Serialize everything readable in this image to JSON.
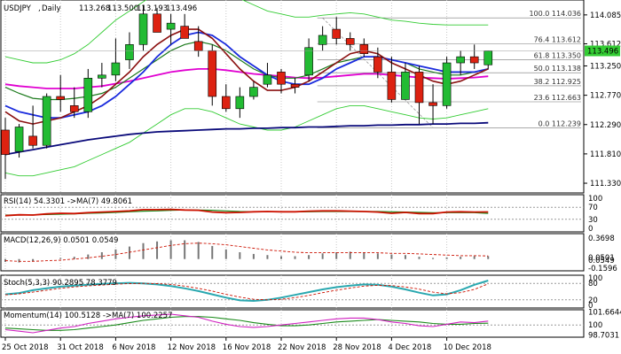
{
  "chart_data": {
    "type": "candlestick",
    "symbol": "USDJPY",
    "timeframe": "Daily",
    "ohlc_header": [
      "113.268",
      "113.500",
      "113.193",
      "113.496"
    ],
    "last_price_label": "113.496",
    "colors": {
      "bull": "#22bb33",
      "bear": "#dd2211",
      "ma_fast": "#8b1010",
      "ma_mid": "#1a2bdd",
      "ma_green": "#1c7a1c",
      "ma_magenta": "#e000d0",
      "ma_long": "#0a0a7a",
      "bollinger": "#33cc33",
      "grid": "#c8c8c8",
      "last_price_bg": "#33cc33"
    },
    "ylim": [
      111.2,
      114.3
    ],
    "price_ticks": [
      "114.085",
      "113.612",
      "113.250",
      "112.770",
      "112.290",
      "111.810",
      "111.330"
    ],
    "x_ticks": [
      {
        "i": 0,
        "label": "25 Oct 2018"
      },
      {
        "i": 4,
        "label": "31 Oct 2018"
      },
      {
        "i": 8,
        "label": "6 Nov 2018"
      },
      {
        "i": 12,
        "label": "12 Nov 2018"
      },
      {
        "i": 16,
        "label": "16 Nov 2018"
      },
      {
        "i": 20,
        "label": "22 Nov 2018"
      },
      {
        "i": 24,
        "label": "28 Nov 2018"
      },
      {
        "i": 28,
        "label": "4 Dec 2018"
      },
      {
        "i": 32,
        "label": "10 Dec 2018"
      }
    ],
    "candles": [
      [
        112.2,
        112.4,
        111.4,
        111.8
      ],
      [
        111.85,
        112.3,
        111.75,
        112.25
      ],
      [
        112.1,
        112.6,
        111.9,
        111.95
      ],
      [
        111.95,
        112.8,
        111.9,
        112.75
      ],
      [
        112.75,
        113.1,
        112.5,
        112.7
      ],
      [
        112.6,
        112.9,
        112.4,
        112.5
      ],
      [
        112.5,
        113.2,
        112.4,
        113.05
      ],
      [
        113.05,
        113.3,
        112.9,
        113.1
      ],
      [
        113.1,
        113.7,
        113.0,
        113.3
      ],
      [
        113.35,
        113.8,
        113.2,
        113.6
      ],
      [
        113.6,
        114.25,
        113.5,
        114.1
      ],
      [
        114.1,
        114.2,
        113.8,
        113.8
      ],
      [
        113.85,
        114.1,
        113.6,
        113.95
      ],
      [
        113.9,
        114.1,
        113.7,
        113.7
      ],
      [
        113.65,
        113.9,
        113.4,
        113.5
      ],
      [
        113.5,
        113.6,
        112.6,
        112.75
      ],
      [
        112.75,
        112.95,
        112.5,
        112.55
      ],
      [
        112.55,
        112.9,
        112.4,
        112.75
      ],
      [
        112.75,
        113.0,
        112.7,
        112.9
      ],
      [
        112.95,
        113.3,
        112.9,
        113.1
      ],
      [
        113.15,
        113.2,
        112.8,
        112.95
      ],
      [
        112.95,
        113.05,
        112.8,
        112.9
      ],
      [
        113.1,
        113.7,
        113.0,
        113.55
      ],
      [
        113.6,
        113.9,
        113.5,
        113.75
      ],
      [
        113.85,
        114.05,
        113.6,
        113.7
      ],
      [
        113.7,
        113.8,
        113.5,
        113.6
      ],
      [
        113.6,
        113.7,
        113.4,
        113.45
      ],
      [
        113.4,
        113.55,
        113.05,
        113.15
      ],
      [
        113.15,
        113.4,
        112.65,
        112.7
      ],
      [
        112.7,
        113.3,
        112.7,
        113.15
      ],
      [
        113.15,
        113.25,
        112.3,
        112.65
      ],
      [
        112.65,
        112.95,
        112.3,
        112.6
      ],
      [
        112.6,
        113.4,
        112.55,
        113.3
      ],
      [
        113.3,
        113.5,
        113.1,
        113.4
      ],
      [
        113.4,
        113.6,
        113.2,
        113.3
      ],
      [
        113.268,
        113.5,
        113.193,
        113.496
      ]
    ],
    "ma_fast": [
      112.5,
      112.35,
      112.3,
      112.35,
      112.4,
      112.5,
      112.6,
      112.75,
      112.95,
      113.15,
      113.4,
      113.6,
      113.75,
      113.85,
      113.85,
      113.7,
      113.45,
      113.2,
      113.0,
      112.85,
      112.85,
      112.9,
      113.0,
      113.15,
      113.3,
      113.45,
      113.5,
      113.45,
      113.3,
      113.2,
      113.1,
      113.0,
      112.95,
      113.0,
      113.1,
      113.2
    ],
    "ma_mid": [
      112.6,
      112.5,
      112.45,
      112.4,
      112.4,
      112.45,
      112.5,
      112.6,
      112.75,
      112.95,
      113.15,
      113.4,
      113.6,
      113.75,
      113.8,
      113.75,
      113.6,
      113.4,
      113.25,
      113.1,
      113.0,
      112.95,
      112.95,
      113.05,
      113.2,
      113.3,
      113.4,
      113.4,
      113.35,
      113.3,
      113.25,
      113.2,
      113.15,
      113.15,
      113.15,
      113.2
    ],
    "ma_green": [
      112.9,
      112.8,
      112.72,
      112.7,
      112.7,
      112.72,
      112.75,
      112.8,
      112.9,
      113.05,
      113.2,
      113.35,
      113.5,
      113.6,
      113.65,
      113.6,
      113.5,
      113.35,
      113.2,
      113.1,
      113.05,
      113.05,
      113.1,
      113.2,
      113.3,
      113.35,
      113.4,
      113.4,
      113.35,
      113.3,
      113.2,
      113.15,
      113.1,
      113.1,
      113.15,
      113.2
    ],
    "ma_magenta": [
      112.95,
      112.92,
      112.9,
      112.88,
      112.88,
      112.88,
      112.9,
      112.92,
      112.96,
      113.0,
      113.05,
      113.1,
      113.15,
      113.18,
      113.2,
      113.2,
      113.18,
      113.15,
      113.12,
      113.1,
      113.08,
      113.06,
      113.05,
      113.06,
      113.08,
      113.1,
      113.12,
      113.12,
      113.1,
      113.08,
      113.06,
      113.05,
      113.04,
      113.05,
      113.06,
      113.08
    ],
    "ma_long": [
      111.8,
      111.84,
      111.88,
      111.92,
      111.96,
      112.0,
      112.04,
      112.07,
      112.1,
      112.13,
      112.15,
      112.17,
      112.18,
      112.19,
      112.2,
      112.21,
      112.22,
      112.22,
      112.23,
      112.23,
      112.24,
      112.24,
      112.25,
      112.25,
      112.26,
      112.27,
      112.27,
      112.28,
      112.28,
      112.29,
      112.29,
      112.3,
      112.3,
      112.31,
      112.31,
      112.32
    ],
    "bb_upper": [
      113.4,
      113.35,
      113.3,
      113.3,
      113.35,
      113.45,
      113.6,
      113.8,
      114.0,
      114.15,
      114.3,
      114.45,
      114.55,
      114.6,
      114.6,
      114.55,
      114.45,
      114.35,
      114.25,
      114.15,
      114.1,
      114.05,
      114.05,
      114.08,
      114.1,
      114.12,
      114.1,
      114.05,
      114.0,
      113.98,
      113.95,
      113.93,
      113.92,
      113.92,
      113.92,
      113.92
    ],
    "bb_lower": [
      111.5,
      111.45,
      111.45,
      111.5,
      111.55,
      111.6,
      111.7,
      111.8,
      111.9,
      112.0,
      112.15,
      112.3,
      112.45,
      112.55,
      112.55,
      112.5,
      112.4,
      112.3,
      112.25,
      112.2,
      112.2,
      112.25,
      112.35,
      112.45,
      112.55,
      112.6,
      112.6,
      112.55,
      112.5,
      112.45,
      112.4,
      112.38,
      112.4,
      112.45,
      112.5,
      112.55
    ],
    "fib_levels": [
      {
        "label": "100.0 114.036",
        "value": 114.036
      },
      {
        "label": "76.4 113.612",
        "value": 113.612
      },
      {
        "label": "61.8 113.350",
        "value": 113.35
      },
      {
        "label": "50.0 113.138",
        "value": 113.138
      },
      {
        "label": "38.2 112.925",
        "value": 112.925
      },
      {
        "label": "23.6 112.663",
        "value": 112.663
      },
      {
        "label": "0.0 112.239",
        "value": 112.239
      }
    ],
    "rsi": {
      "title": "RSI(14) 54.3301 ->MA(7) 49.8061",
      "ticks": [
        "100",
        "70",
        "30",
        "0"
      ],
      "levels": [
        70,
        30
      ],
      "values": [
        42,
        45,
        44,
        48,
        50,
        49,
        52,
        54,
        56,
        58,
        62,
        62,
        63,
        61,
        60,
        54,
        52,
        53,
        55,
        56,
        55,
        55,
        57,
        58,
        58,
        57,
        56,
        54,
        50,
        53,
        49,
        49,
        54,
        55,
        54,
        54.33
      ],
      "ma": [
        44,
        44,
        45,
        46,
        47,
        48,
        50,
        51,
        53,
        55,
        57,
        58,
        60,
        61,
        61,
        60,
        58,
        56,
        55,
        55,
        55,
        55,
        55,
        56,
        56,
        56,
        56,
        56,
        55,
        54,
        53,
        52,
        52,
        52,
        52,
        49.81
      ]
    },
    "macd": {
      "title": "MACD(12,26,9) 0.0501 0.0549",
      "ticks": [
        "0.3698",
        "0.0501",
        "0.0549",
        "-0.1596"
      ],
      "ylim": [
        -0.16,
        0.4
      ],
      "values": [
        -0.05,
        -0.06,
        -0.04,
        0.0,
        0.02,
        0.04,
        0.08,
        0.12,
        0.17,
        0.22,
        0.28,
        0.31,
        0.33,
        0.33,
        0.3,
        0.23,
        0.17,
        0.12,
        0.09,
        0.07,
        0.05,
        0.05,
        0.07,
        0.1,
        0.12,
        0.13,
        0.12,
        0.1,
        0.08,
        0.07,
        0.04,
        0.02,
        0.03,
        0.04,
        0.05,
        0.0501
      ],
      "signal": [
        -0.03,
        -0.04,
        -0.04,
        -0.03,
        -0.02,
        0.0,
        0.02,
        0.05,
        0.08,
        0.12,
        0.16,
        0.2,
        0.24,
        0.27,
        0.28,
        0.27,
        0.25,
        0.22,
        0.19,
        0.16,
        0.14,
        0.12,
        0.11,
        0.11,
        0.11,
        0.11,
        0.11,
        0.11,
        0.1,
        0.1,
        0.09,
        0.08,
        0.07,
        0.06,
        0.06,
        0.0549
      ]
    },
    "stoch": {
      "title": "Stoch(5,3,3) 90.2895 78.3779",
      "ticks": [
        "100",
        "80",
        "20",
        "0"
      ],
      "levels": [
        80,
        20
      ],
      "k": [
        40,
        45,
        55,
        62,
        68,
        72,
        75,
        78,
        80,
        82,
        80,
        76,
        70,
        62,
        52,
        40,
        28,
        18,
        16,
        20,
        28,
        38,
        48,
        58,
        66,
        72,
        76,
        75,
        68,
        58,
        46,
        36,
        40,
        55,
        75,
        90.29
      ],
      "d": [
        38,
        42,
        48,
        55,
        62,
        67,
        71,
        74,
        77,
        79,
        80,
        79,
        76,
        70,
        62,
        52,
        40,
        30,
        22,
        20,
        22,
        28,
        36,
        46,
        55,
        63,
        70,
        73,
        72,
        67,
        59,
        48,
        42,
        46,
        58,
        78.38
      ]
    },
    "momentum": {
      "title": "Momentum(14) 100.5128 ->MA(7) 100.2257",
      "ticks": [
        "101.6644",
        "100",
        "98.7031"
      ],
      "ylim": [
        98.65,
        101.75
      ],
      "values": [
        99.4,
        99.2,
        99.0,
        99.3,
        99.6,
        99.8,
        100.2,
        100.5,
        100.8,
        101.0,
        101.2,
        101.3,
        101.4,
        101.2,
        101.0,
        100.5,
        100.1,
        99.8,
        99.7,
        99.8,
        100.0,
        100.2,
        100.4,
        100.6,
        100.8,
        100.9,
        100.9,
        100.7,
        100.4,
        100.2,
        99.9,
        99.8,
        100.1,
        100.4,
        100.3,
        100.51
      ],
      "ma": [
        99.6,
        99.5,
        99.4,
        99.3,
        99.3,
        99.4,
        99.6,
        99.8,
        100.0,
        100.3,
        100.6,
        100.8,
        101.0,
        101.1,
        101.1,
        101.0,
        100.8,
        100.6,
        100.3,
        100.1,
        99.9,
        99.9,
        100.0,
        100.2,
        100.4,
        100.5,
        100.6,
        100.7,
        100.6,
        100.5,
        100.4,
        100.2,
        100.1,
        100.1,
        100.2,
        100.23
      ]
    }
  }
}
